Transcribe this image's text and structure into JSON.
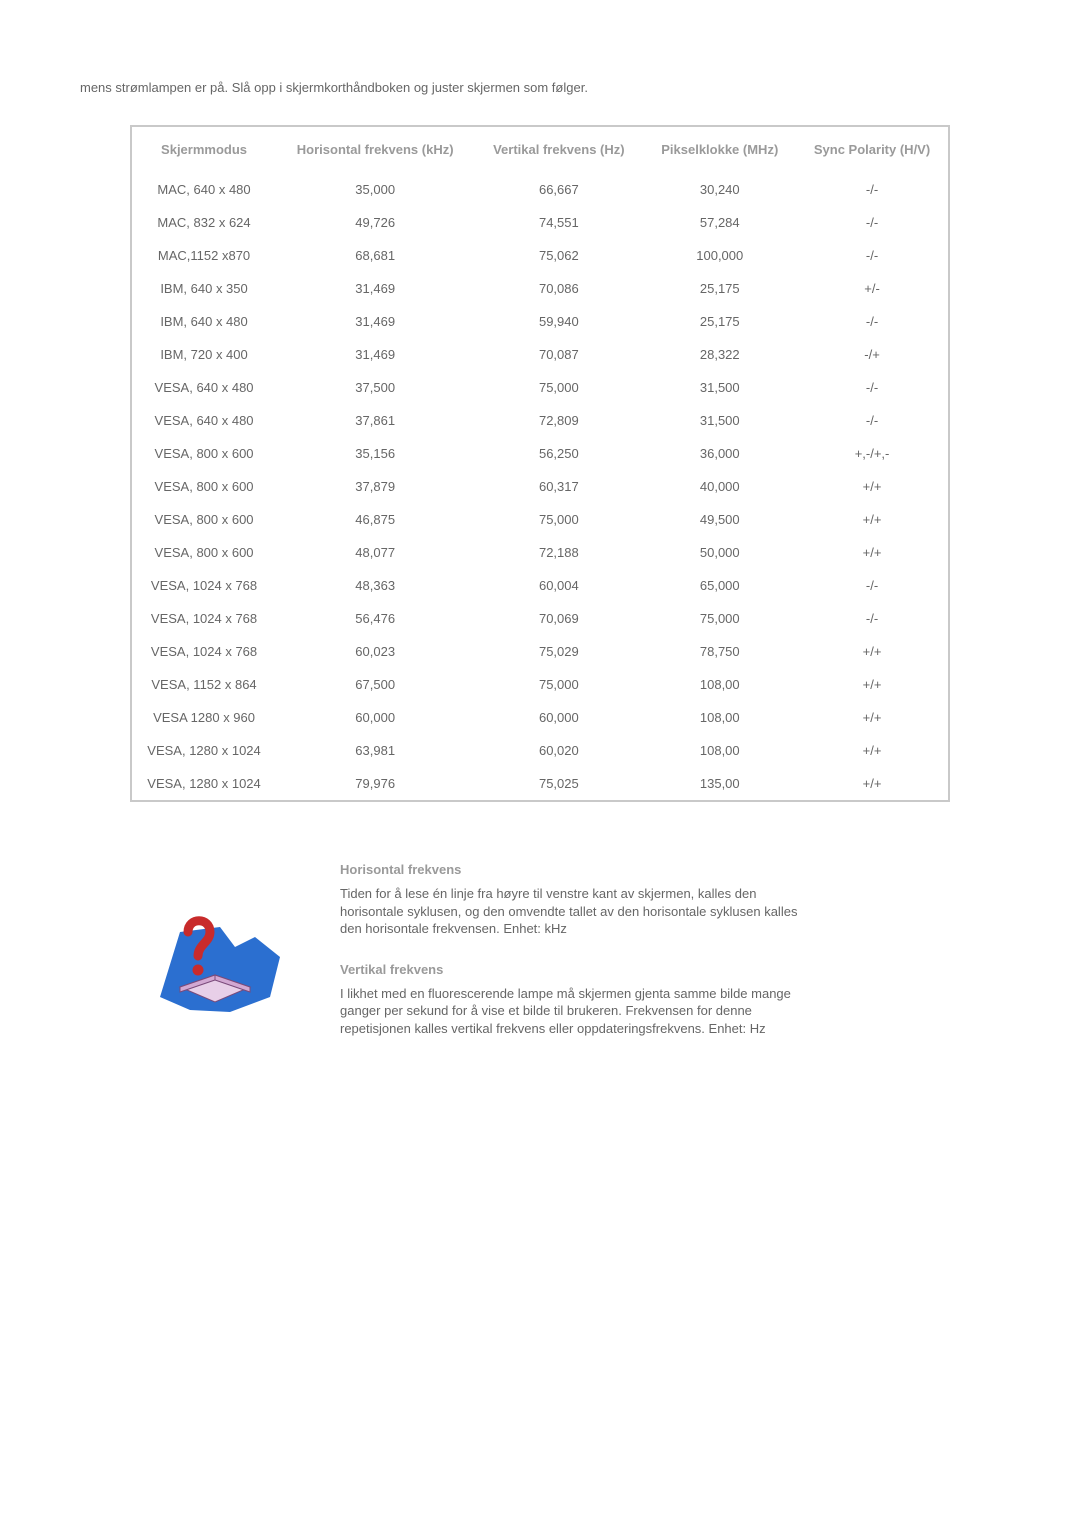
{
  "intro": "mens strømlampen er på. Slå opp i skjermkorthåndboken og juster skjermen som følger.",
  "headers": {
    "mode": "Skjermmodus",
    "hfreq": "Horisontal frekvens (kHz)",
    "vfreq": "Vertikal frekvens (Hz)",
    "pclk": "Pikselklokke (MHz)",
    "sync": "Sync Polarity (H/V)"
  },
  "rows": [
    {
      "mode": "MAC, 640 x 480",
      "h": "35,000",
      "v": "66,667",
      "p": "30,240",
      "s": "-/-"
    },
    {
      "mode": "MAC, 832 x 624",
      "h": "49,726",
      "v": "74,551",
      "p": "57,284",
      "s": "-/-"
    },
    {
      "mode": "MAC,1152 x870",
      "h": "68,681",
      "v": "75,062",
      "p": "100,000",
      "s": "-/-"
    },
    {
      "mode": "IBM, 640 x 350",
      "h": "31,469",
      "v": "70,086",
      "p": "25,175",
      "s": "+/-"
    },
    {
      "mode": "IBM, 640 x 480",
      "h": "31,469",
      "v": "59,940",
      "p": "25,175",
      "s": "-/-"
    },
    {
      "mode": "IBM, 720 x 400",
      "h": "31,469",
      "v": "70,087",
      "p": "28,322",
      "s": "-/+"
    },
    {
      "mode": "VESA, 640 x 480",
      "h": "37,500",
      "v": "75,000",
      "p": "31,500",
      "s": "-/-"
    },
    {
      "mode": "VESA, 640 x 480",
      "h": "37,861",
      "v": "72,809",
      "p": "31,500",
      "s": "-/-"
    },
    {
      "mode": "VESA, 800 x 600",
      "h": "35,156",
      "v": "56,250",
      "p": "36,000",
      "s": "+,-/+,-"
    },
    {
      "mode": "VESA, 800 x 600",
      "h": "37,879",
      "v": "60,317",
      "p": "40,000",
      "s": "+/+"
    },
    {
      "mode": "VESA, 800 x 600",
      "h": "46,875",
      "v": "75,000",
      "p": "49,500",
      "s": "+/+"
    },
    {
      "mode": "VESA, 800 x 600",
      "h": "48,077",
      "v": "72,188",
      "p": "50,000",
      "s": "+/+"
    },
    {
      "mode": "VESA, 1024 x 768",
      "h": "48,363",
      "v": "60,004",
      "p": "65,000",
      "s": "-/-"
    },
    {
      "mode": "VESA, 1024 x 768",
      "h": "56,476",
      "v": "70,069",
      "p": "75,000",
      "s": "-/-"
    },
    {
      "mode": "VESA, 1024 x 768",
      "h": "60,023",
      "v": "75,029",
      "p": "78,750",
      "s": "+/+"
    },
    {
      "mode": "VESA, 1152 x 864",
      "h": "67,500",
      "v": "75,000",
      "p": "108,00",
      "s": "+/+"
    },
    {
      "mode": "VESA 1280 x 960",
      "h": "60,000",
      "v": "60,000",
      "p": "108,00",
      "s": "+/+"
    },
    {
      "mode": "VESA, 1280 x 1024",
      "h": "63,981",
      "v": "60,020",
      "p": "108,00",
      "s": "+/+"
    },
    {
      "mode": "VESA, 1280 x 1024",
      "h": "79,976",
      "v": "75,025",
      "p": "135,00",
      "s": "+/+"
    }
  ],
  "defs": {
    "h_title": "Horisontal frekvens",
    "h_body": "Tiden for å lese én linje fra høyre til venstre kant av skjermen, kalles den horisontale syklusen, og den omvendte tallet av den horisontale syklusen kalles den horisontale frekvensen. Enhet: kHz",
    "v_title": "Vertikal frekvens",
    "v_body": "I likhet med en fluorescerende lampe må skjermen gjenta samme bilde mange ganger per sekund for å vise et bilde til brukeren. Frekvensen for denne repetisjonen kalles vertikal frekvens eller oppdateringsfrekvens. Enhet: Hz"
  },
  "style": {
    "text_color": "#666666",
    "header_color": "#9a9a9a",
    "border_color": "#c9c9c9",
    "bg_color": "#ffffff",
    "body_fontsize": 13
  }
}
